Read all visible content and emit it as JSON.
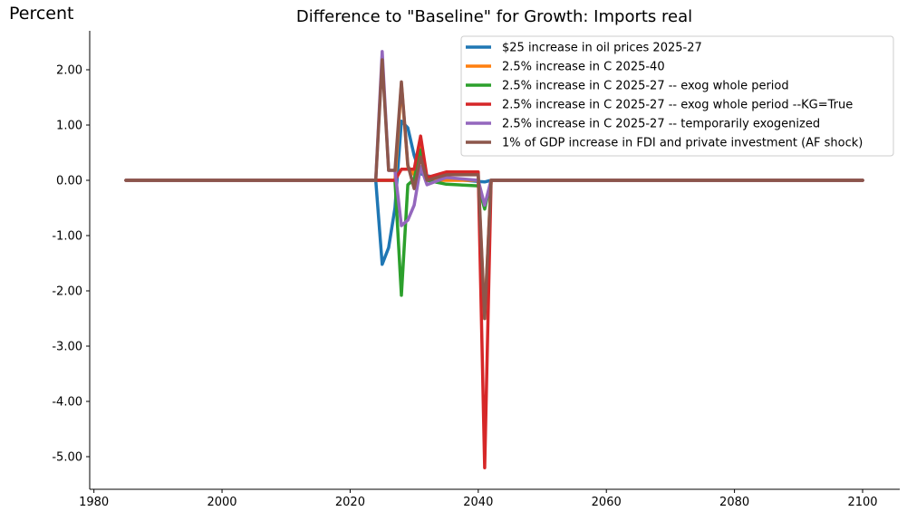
{
  "chart_data": {
    "type": "line",
    "title": "Difference to \"Baseline\" for Growth: Imports real",
    "ylabel": "Percent",
    "xlabel": "",
    "xlim": [
      1985,
      2100
    ],
    "ylim": [
      -5.6,
      2.7
    ],
    "xticks": [
      1980,
      2000,
      2020,
      2040,
      2060,
      2080,
      2100
    ],
    "yticks": [
      2.0,
      1.0,
      0.0,
      -1.0,
      -2.0,
      -3.0,
      -4.0,
      -5.0
    ],
    "ytick_labels": [
      "2.00",
      "1.00",
      "0.00",
      "-1.00",
      "-2.00",
      "-3.00",
      "-4.00",
      "-5.00"
    ],
    "grid": false,
    "legend_position": "top-right",
    "series": [
      {
        "name": "$25 increase in oil prices 2025-27",
        "color": "#1f77b4",
        "x": [
          1985,
          2024,
          2025,
          2026,
          2027,
          2028,
          2029,
          2030,
          2031,
          2032,
          2035,
          2038,
          2040,
          2041,
          2042,
          2100
        ],
        "y": [
          0.0,
          0.0,
          -1.52,
          -1.22,
          -0.5,
          1.07,
          0.95,
          0.45,
          0.12,
          0.08,
          0.03,
          0.0,
          -0.02,
          -0.03,
          0.0,
          0.0
        ]
      },
      {
        "name": "2.5% increase in C 2025-40",
        "color": "#ff7f0e",
        "x": [
          1985,
          2024,
          2025,
          2026,
          2027,
          2028,
          2029,
          2030,
          2031,
          2032,
          2040,
          2041,
          2042,
          2100
        ],
        "y": [
          0.0,
          0.0,
          0.0,
          0.0,
          0.0,
          1.75,
          0.25,
          0.1,
          0.7,
          0.0,
          0.0,
          -2.5,
          0.0,
          0.0
        ]
      },
      {
        "name": "2.5% increase in C 2025-27 -- exog whole period",
        "color": "#2ca02c",
        "x": [
          1985,
          2024,
          2025,
          2026,
          2027,
          2028,
          2029,
          2030,
          2031,
          2032,
          2035,
          2040,
          2041,
          2042,
          2100
        ],
        "y": [
          0.0,
          0.0,
          0.0,
          0.0,
          0.0,
          -2.08,
          -0.08,
          0.02,
          0.55,
          0.0,
          -0.07,
          -0.1,
          -0.52,
          0.0,
          0.0
        ]
      },
      {
        "name": "2.5% increase in C 2025-27 -- exog whole period --KG=True",
        "color": "#d62728",
        "x": [
          1985,
          2024,
          2025,
          2026,
          2027,
          2028,
          2029,
          2030,
          2031,
          2032,
          2035,
          2040,
          2041,
          2042,
          2100
        ],
        "y": [
          0.0,
          0.0,
          0.0,
          0.0,
          0.0,
          0.2,
          0.2,
          0.2,
          0.8,
          0.05,
          0.15,
          0.15,
          -5.2,
          0.0,
          0.0
        ]
      },
      {
        "name": "2.5% increase in C 2025-27 -- temporarily exogenized",
        "color": "#9467bd",
        "x": [
          1985,
          2024,
          2025,
          2026,
          2027,
          2028,
          2029,
          2030,
          2031,
          2032,
          2035,
          2040,
          2041,
          2042,
          2100
        ],
        "y": [
          0.0,
          0.0,
          2.33,
          0.18,
          0.18,
          -0.82,
          -0.72,
          -0.45,
          0.25,
          -0.08,
          0.05,
          0.0,
          -0.45,
          0.0,
          0.0
        ]
      },
      {
        "name": "1% of GDP increase in FDI and private investment (AF shock)",
        "color": "#8c564b",
        "x": [
          1985,
          2024,
          2025,
          2026,
          2027,
          2028,
          2029,
          2030,
          2031,
          2032,
          2035,
          2038,
          2040,
          2041,
          2042,
          2100
        ],
        "y": [
          0.0,
          0.0,
          2.18,
          0.18,
          0.18,
          1.78,
          0.28,
          -0.15,
          0.42,
          0.0,
          0.1,
          0.1,
          0.1,
          -2.5,
          0.0,
          0.0
        ]
      }
    ]
  }
}
